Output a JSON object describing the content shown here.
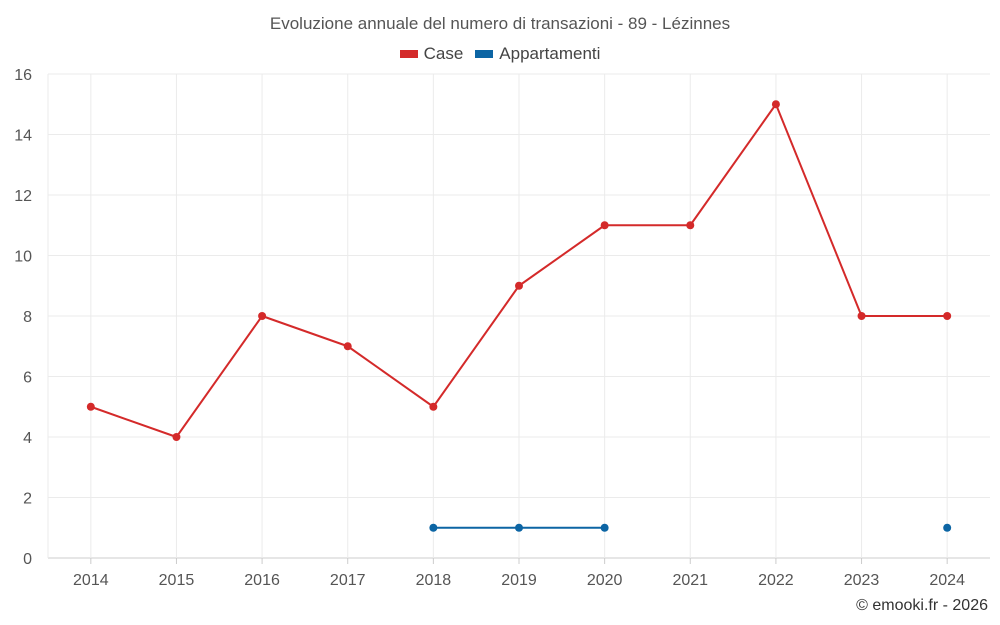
{
  "chart_data": {
    "type": "line",
    "title": "Evoluzione annuale del numero di transazioni - 89 - Lézinnes",
    "categories": [
      "2014",
      "2015",
      "2016",
      "2017",
      "2018",
      "2019",
      "2020",
      "2021",
      "2022",
      "2023",
      "2024"
    ],
    "series": [
      {
        "name": "Case",
        "color": "#d42a2a",
        "values": [
          5,
          4,
          8,
          7,
          5,
          9,
          11,
          11,
          15,
          8,
          8
        ]
      },
      {
        "name": "Appartamenti",
        "color": "#0c65a4",
        "values": [
          null,
          null,
          null,
          null,
          1,
          1,
          1,
          null,
          null,
          null,
          1
        ]
      }
    ],
    "ylim": [
      0,
      16
    ],
    "yticks": [
      0,
      2,
      4,
      6,
      8,
      10,
      12,
      14,
      16
    ],
    "xlabel": "",
    "ylabel": "",
    "grid": true,
    "legend": "top-center"
  },
  "credit": "© emooki.fr - 2026"
}
